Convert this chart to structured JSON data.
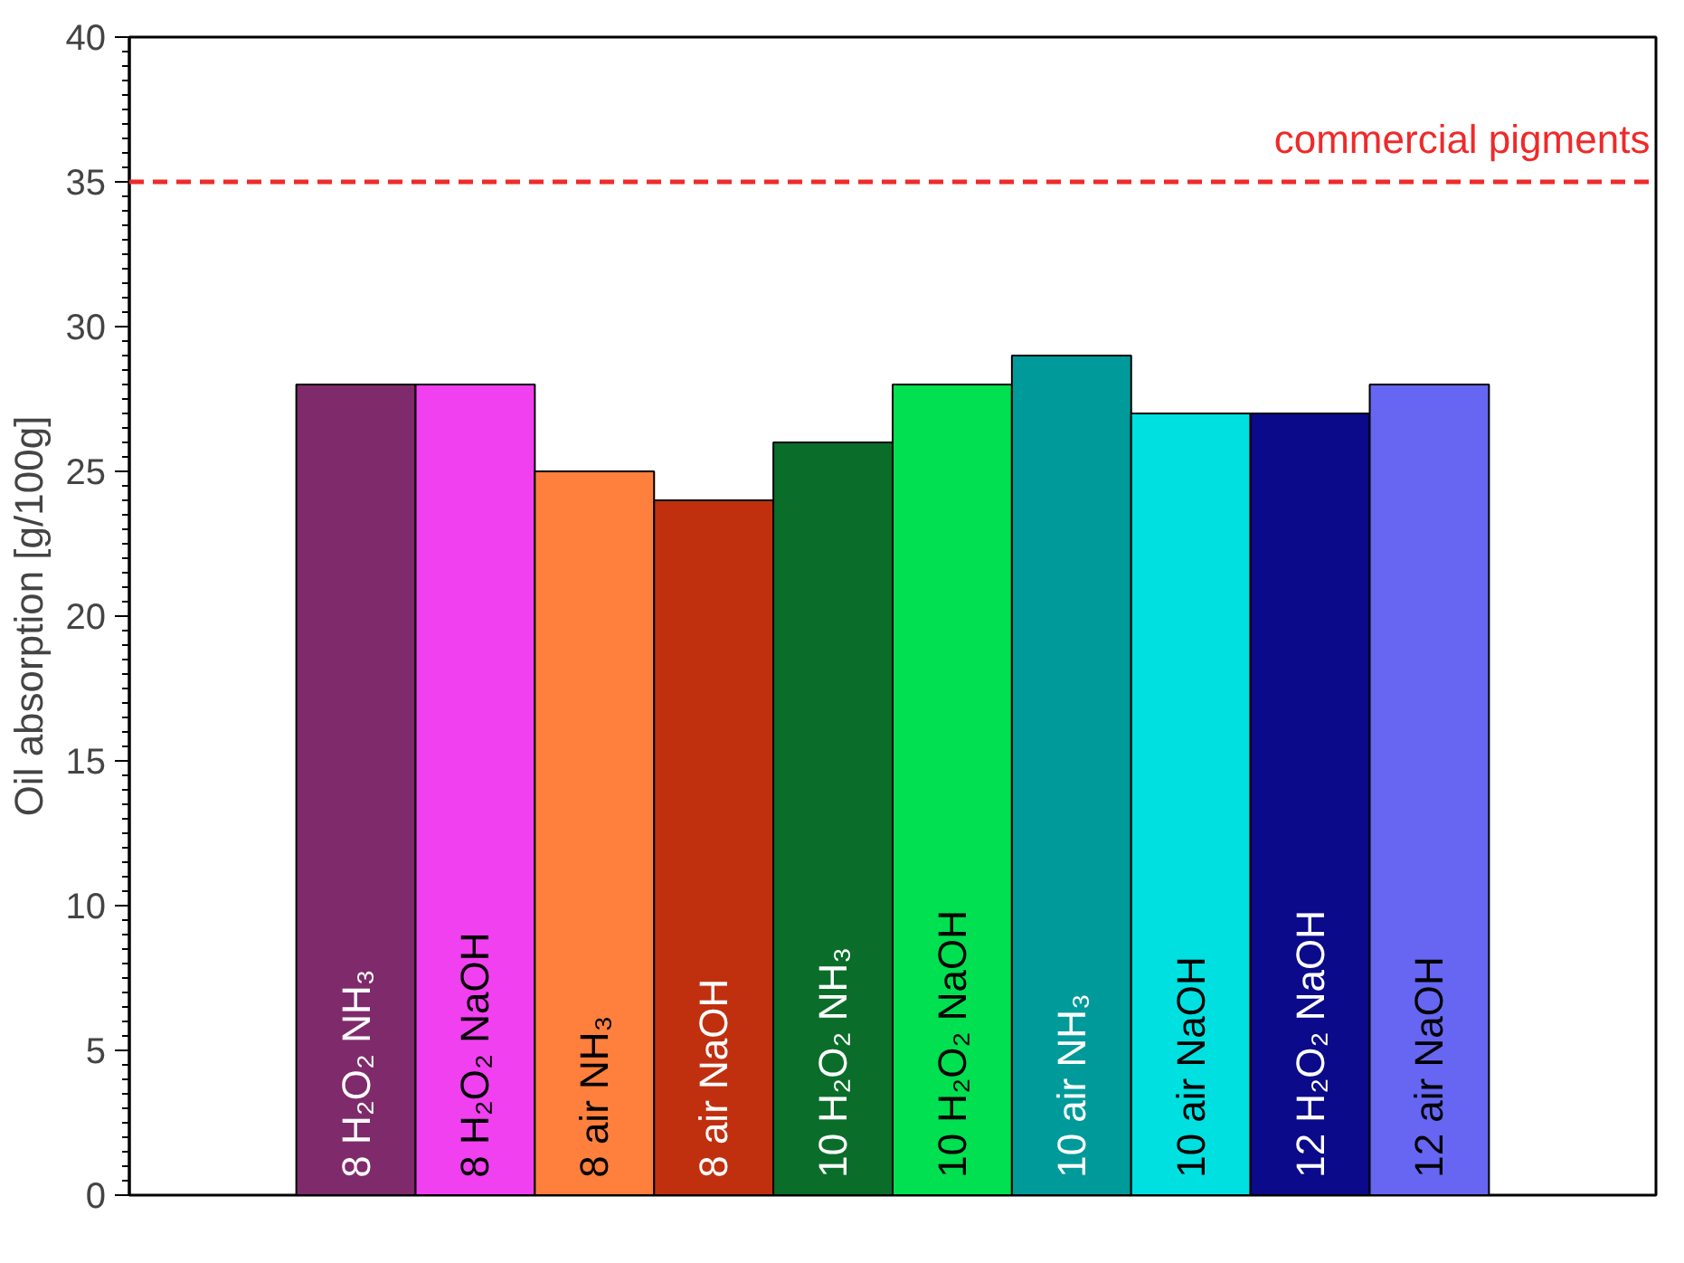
{
  "chart_data": {
    "type": "bar",
    "ylabel": "Oil absorption [g/100g]",
    "categories": [
      "8 H₂O₂ NH₃",
      "8 H₂O₂ NaOH",
      "8 air NH₃",
      "8 air NaOH",
      "10 H₂O₂ NH₃",
      "10 H₂O₂ NaOH",
      "10 air NH₃",
      "10 air NaOH",
      "12 H₂O₂ NaOH",
      "12 air NaOH"
    ],
    "values": [
      28,
      28,
      25,
      24,
      26,
      28,
      29,
      27,
      27,
      28
    ],
    "colors": [
      "#7f2a6b",
      "#f040f0",
      "#ff7f3c",
      "#c0300f",
      "#0a6e2a",
      "#00e050",
      "#009a9a",
      "#00e0e0",
      "#0a0a8a",
      "#6666f2"
    ],
    "ylim": [
      0,
      40
    ],
    "yticks": [
      0,
      5,
      10,
      15,
      20,
      25,
      30,
      35,
      40
    ],
    "ref_lines": [
      {
        "axis": "y",
        "value": 35,
        "label": "commercial pigments",
        "color": "#ee2a2a",
        "line_style": "dashed"
      }
    ],
    "grid": false
  }
}
